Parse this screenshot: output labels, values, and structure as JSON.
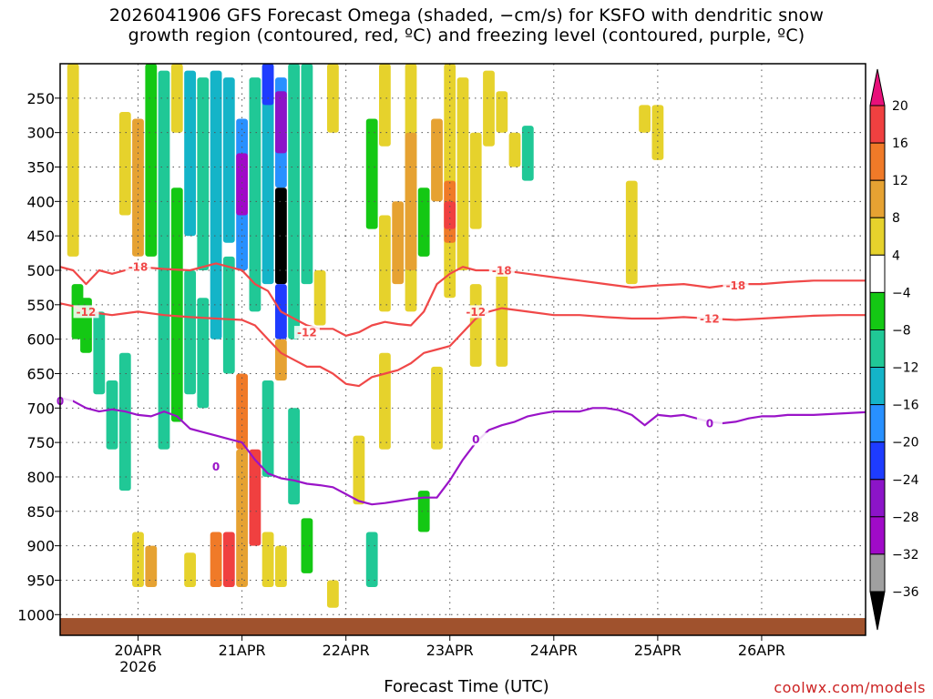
{
  "chart_data": {
    "type": "heatmap",
    "title_line1": "2026041906 GFS Forecast Omega (shaded, −cm/s) for KSFO with dendritic snow",
    "title_line2": "growth region (contoured, red, ºC) and freezing level (contoured, purple, ºC)",
    "xlabel": "Forecast Time (UTC)",
    "credit": "coolwx.com/models",
    "y_axis": {
      "variable": "pressure (hPa)",
      "range": [
        200,
        1030
      ],
      "ticks": [
        250,
        300,
        350,
        400,
        450,
        500,
        550,
        600,
        650,
        700,
        750,
        800,
        850,
        900,
        950,
        1000
      ]
    },
    "x_axis": {
      "variable": "hours since 2026-04-19 00Z",
      "range": [
        6,
        192
      ],
      "ticks": [
        {
          "hour": 24,
          "label": "20APR",
          "sublabel": "2026"
        },
        {
          "hour": 48,
          "label": "21APR",
          "sublabel": ""
        },
        {
          "hour": 72,
          "label": "22APR",
          "sublabel": ""
        },
        {
          "hour": 96,
          "label": "23APR",
          "sublabel": ""
        },
        {
          "hour": 120,
          "label": "24APR",
          "sublabel": ""
        },
        {
          "hour": 144,
          "label": "25APR",
          "sublabel": ""
        },
        {
          "hour": 168,
          "label": "26APR",
          "sublabel": ""
        }
      ]
    },
    "colorbar": {
      "labels": [
        "20",
        "16",
        "12",
        "8",
        "4",
        "−4",
        "−8",
        "−12",
        "−16",
        "−20",
        "−24",
        "−28",
        "−32",
        "−36"
      ],
      "colors": [
        "#e8107a",
        "#f04040",
        "#f07a28",
        "#e6a232",
        "#e6d22c",
        "#ffffff",
        "#14c814",
        "#20c896",
        "#14b4c8",
        "#2890ff",
        "#1e3cff",
        "#8c14c8",
        "#a00ac8",
        "#a0a0a0",
        "#000000"
      ]
    },
    "omega_cells": [
      {
        "t": 9,
        "p0": 200,
        "p1": 480,
        "v": 6
      },
      {
        "t": 10,
        "p0": 520,
        "p1": 600,
        "v": -6
      },
      {
        "t": 12,
        "p0": 540,
        "p1": 620,
        "v": -7
      },
      {
        "t": 15,
        "p0": 560,
        "p1": 680,
        "v": -8
      },
      {
        "t": 18,
        "p0": 660,
        "p1": 760,
        "v": -10
      },
      {
        "t": 21,
        "p0": 620,
        "p1": 820,
        "v": -9
      },
      {
        "t": 21,
        "p0": 270,
        "p1": 420,
        "v": 7
      },
      {
        "t": 24,
        "p0": 280,
        "p1": 480,
        "v": 9
      },
      {
        "t": 24,
        "p0": 880,
        "p1": 960,
        "v": 6
      },
      {
        "t": 27,
        "p0": 200,
        "p1": 480,
        "v": -6
      },
      {
        "t": 27,
        "p0": 900,
        "p1": 960,
        "v": 8
      },
      {
        "t": 30,
        "p0": 210,
        "p1": 760,
        "v": -9
      },
      {
        "t": 33,
        "p0": 200,
        "p1": 300,
        "v": 6
      },
      {
        "t": 33,
        "p0": 380,
        "p1": 720,
        "v": -7
      },
      {
        "t": 36,
        "p0": 210,
        "p1": 450,
        "v": -12
      },
      {
        "t": 36,
        "p0": 500,
        "p1": 680,
        "v": -10
      },
      {
        "t": 36,
        "p0": 910,
        "p1": 960,
        "v": 6
      },
      {
        "t": 39,
        "p0": 220,
        "p1": 500,
        "v": -8
      },
      {
        "t": 39,
        "p0": 540,
        "p1": 700,
        "v": -9
      },
      {
        "t": 42,
        "p0": 210,
        "p1": 600,
        "v": -14
      },
      {
        "t": 42,
        "p0": 880,
        "p1": 960,
        "v": 12
      },
      {
        "t": 45,
        "p0": 220,
        "p1": 460,
        "v": -13
      },
      {
        "t": 45,
        "p0": 480,
        "p1": 650,
        "v": -10
      },
      {
        "t": 45,
        "p0": 880,
        "p1": 960,
        "v": 17
      },
      {
        "t": 48,
        "p0": 280,
        "p1": 500,
        "v": -18
      },
      {
        "t": 48,
        "p0": 330,
        "p1": 420,
        "v": -29
      },
      {
        "t": 48,
        "p0": 650,
        "p1": 760,
        "v": 14
      },
      {
        "t": 48,
        "p0": 760,
        "p1": 960,
        "v": 9
      },
      {
        "t": 51,
        "p0": 220,
        "p1": 560,
        "v": -10
      },
      {
        "t": 51,
        "p0": 760,
        "p1": 900,
        "v": 18
      },
      {
        "t": 54,
        "p0": 200,
        "p1": 520,
        "v": -14
      },
      {
        "t": 54,
        "p0": 200,
        "p1": 260,
        "v": -21
      },
      {
        "t": 54,
        "p0": 660,
        "p1": 800,
        "v": -8
      },
      {
        "t": 54,
        "p0": 880,
        "p1": 960,
        "v": 7
      },
      {
        "t": 57,
        "p0": 220,
        "p1": 380,
        "v": -18
      },
      {
        "t": 57,
        "p0": 240,
        "p1": 330,
        "v": -25
      },
      {
        "t": 57,
        "p0": 380,
        "p1": 520,
        "v": -37
      },
      {
        "t": 57,
        "p0": 520,
        "p1": 600,
        "v": -21
      },
      {
        "t": 57,
        "p0": 600,
        "p1": 660,
        "v": 9
      },
      {
        "t": 57,
        "p0": 900,
        "p1": 960,
        "v": 6
      },
      {
        "t": 60,
        "p0": 200,
        "p1": 600,
        "v": -10
      },
      {
        "t": 60,
        "p0": 700,
        "p1": 840,
        "v": -9
      },
      {
        "t": 63,
        "p0": 200,
        "p1": 520,
        "v": -8
      },
      {
        "t": 63,
        "p0": 860,
        "p1": 940,
        "v": -7
      },
      {
        "t": 66,
        "p0": 500,
        "p1": 580,
        "v": 6
      },
      {
        "t": 69,
        "p0": 200,
        "p1": 300,
        "v": 6
      },
      {
        "t": 69,
        "p0": 950,
        "p1": 990,
        "v": 6
      },
      {
        "t": 75,
        "p0": 740,
        "p1": 840,
        "v": 6
      },
      {
        "t": 78,
        "p0": 280,
        "p1": 440,
        "v": -7
      },
      {
        "t": 78,
        "p0": 880,
        "p1": 960,
        "v": -8
      },
      {
        "t": 81,
        "p0": 200,
        "p1": 320,
        "v": 6
      },
      {
        "t": 81,
        "p0": 420,
        "p1": 560,
        "v": 7
      },
      {
        "t": 81,
        "p0": 620,
        "p1": 760,
        "v": 6
      },
      {
        "t": 84,
        "p0": 400,
        "p1": 520,
        "v": 10
      },
      {
        "t": 87,
        "p0": 200,
        "p1": 560,
        "v": 6
      },
      {
        "t": 87,
        "p0": 300,
        "p1": 500,
        "v": 9
      },
      {
        "t": 90,
        "p0": 380,
        "p1": 480,
        "v": -7
      },
      {
        "t": 90,
        "p0": 820,
        "p1": 880,
        "v": -7
      },
      {
        "t": 93,
        "p0": 280,
        "p1": 400,
        "v": 10
      },
      {
        "t": 93,
        "p0": 640,
        "p1": 760,
        "v": 6
      },
      {
        "t": 96,
        "p0": 200,
        "p1": 540,
        "v": 7
      },
      {
        "t": 96,
        "p0": 370,
        "p1": 460,
        "v": 13
      },
      {
        "t": 96,
        "p0": 400,
        "p1": 440,
        "v": 17
      },
      {
        "t": 99,
        "p0": 220,
        "p1": 500,
        "v": 6
      },
      {
        "t": 102,
        "p0": 300,
        "p1": 440,
        "v": 6
      },
      {
        "t": 102,
        "p0": 520,
        "p1": 640,
        "v": 6
      },
      {
        "t": 105,
        "p0": 210,
        "p1": 320,
        "v": 5
      },
      {
        "t": 108,
        "p0": 240,
        "p1": 300,
        "v": 6
      },
      {
        "t": 108,
        "p0": 500,
        "p1": 640,
        "v": 6
      },
      {
        "t": 111,
        "p0": 300,
        "p1": 350,
        "v": 5
      },
      {
        "t": 114,
        "p0": 290,
        "p1": 370,
        "v": -8
      },
      {
        "t": 138,
        "p0": 370,
        "p1": 520,
        "v": 6
      },
      {
        "t": 141,
        "p0": 260,
        "p1": 300,
        "v": 6
      },
      {
        "t": 144,
        "p0": 260,
        "p1": 340,
        "v": 6
      }
    ],
    "snow_growth_contours": [
      {
        "label": "-18",
        "points": [
          [
            6,
            495
          ],
          [
            9,
            500
          ],
          [
            12,
            520
          ],
          [
            15,
            500
          ],
          [
            18,
            505
          ],
          [
            24,
            495
          ],
          [
            30,
            498
          ],
          [
            36,
            500
          ],
          [
            42,
            490
          ],
          [
            48,
            500
          ],
          [
            51,
            520
          ],
          [
            54,
            530
          ],
          [
            57,
            560
          ],
          [
            60,
            570
          ],
          [
            63,
            580
          ],
          [
            66,
            585
          ],
          [
            69,
            585
          ],
          [
            72,
            595
          ],
          [
            75,
            590
          ],
          [
            78,
            580
          ],
          [
            81,
            575
          ],
          [
            84,
            578
          ],
          [
            87,
            580
          ],
          [
            90,
            560
          ],
          [
            93,
            520
          ],
          [
            96,
            505
          ],
          [
            99,
            495
          ],
          [
            102,
            500
          ],
          [
            108,
            500
          ],
          [
            114,
            505
          ],
          [
            120,
            510
          ],
          [
            126,
            515
          ],
          [
            132,
            520
          ],
          [
            138,
            525
          ],
          [
            144,
            522
          ],
          [
            150,
            520
          ],
          [
            156,
            525
          ],
          [
            162,
            520
          ],
          [
            168,
            520
          ],
          [
            174,
            517
          ],
          [
            180,
            515
          ],
          [
            186,
            515
          ],
          [
            192,
            515
          ]
        ],
        "label_at": [
          [
            24,
            495
          ],
          [
            108,
            500
          ],
          [
            162,
            522
          ]
        ]
      },
      {
        "label": "-12",
        "points": [
          [
            6,
            548
          ],
          [
            9,
            552
          ],
          [
            12,
            560
          ],
          [
            18,
            565
          ],
          [
            24,
            560
          ],
          [
            30,
            565
          ],
          [
            36,
            568
          ],
          [
            42,
            570
          ],
          [
            48,
            572
          ],
          [
            51,
            580
          ],
          [
            54,
            600
          ],
          [
            57,
            620
          ],
          [
            60,
            630
          ],
          [
            63,
            640
          ],
          [
            66,
            640
          ],
          [
            69,
            650
          ],
          [
            72,
            665
          ],
          [
            75,
            668
          ],
          [
            78,
            655
          ],
          [
            81,
            650
          ],
          [
            84,
            645
          ],
          [
            87,
            635
          ],
          [
            90,
            620
          ],
          [
            93,
            615
          ],
          [
            96,
            610
          ],
          [
            99,
            590
          ],
          [
            102,
            570
          ],
          [
            105,
            560
          ],
          [
            108,
            555
          ],
          [
            114,
            560
          ],
          [
            120,
            565
          ],
          [
            126,
            565
          ],
          [
            132,
            568
          ],
          [
            138,
            570
          ],
          [
            144,
            570
          ],
          [
            150,
            568
          ],
          [
            156,
            570
          ],
          [
            162,
            572
          ],
          [
            168,
            570
          ],
          [
            174,
            568
          ],
          [
            180,
            566
          ],
          [
            186,
            565
          ],
          [
            192,
            565
          ]
        ],
        "label_at": [
          [
            12,
            560
          ],
          [
            63,
            590
          ],
          [
            102,
            560
          ],
          [
            156,
            570
          ]
        ]
      }
    ],
    "freezing_level_contour": {
      "label": "0",
      "points": [
        [
          6,
          685
        ],
        [
          9,
          690
        ],
        [
          12,
          700
        ],
        [
          15,
          705
        ],
        [
          18,
          702
        ],
        [
          21,
          705
        ],
        [
          24,
          710
        ],
        [
          27,
          712
        ],
        [
          30,
          705
        ],
        [
          33,
          712
        ],
        [
          36,
          730
        ],
        [
          39,
          735
        ],
        [
          42,
          740
        ],
        [
          45,
          745
        ],
        [
          48,
          750
        ],
        [
          51,
          775
        ],
        [
          54,
          795
        ],
        [
          57,
          802
        ],
        [
          60,
          805
        ],
        [
          63,
          810
        ],
        [
          66,
          812
        ],
        [
          69,
          815
        ],
        [
          72,
          825
        ],
        [
          75,
          835
        ],
        [
          78,
          840
        ],
        [
          81,
          838
        ],
        [
          84,
          835
        ],
        [
          87,
          832
        ],
        [
          90,
          830
        ],
        [
          93,
          830
        ],
        [
          96,
          805
        ],
        [
          99,
          775
        ],
        [
          102,
          750
        ],
        [
          105,
          732
        ],
        [
          108,
          725
        ],
        [
          111,
          720
        ],
        [
          114,
          712
        ],
        [
          117,
          708
        ],
        [
          120,
          705
        ],
        [
          123,
          705
        ],
        [
          126,
          705
        ],
        [
          129,
          700
        ],
        [
          132,
          700
        ],
        [
          135,
          703
        ],
        [
          138,
          710
        ],
        [
          141,
          725
        ],
        [
          144,
          710
        ],
        [
          147,
          712
        ],
        [
          150,
          710
        ],
        [
          153,
          715
        ],
        [
          156,
          720
        ],
        [
          159,
          722
        ],
        [
          162,
          720
        ],
        [
          165,
          715
        ],
        [
          168,
          712
        ],
        [
          171,
          712
        ],
        [
          174,
          710
        ],
        [
          180,
          710
        ],
        [
          186,
          708
        ],
        [
          192,
          706
        ]
      ],
      "label_at": [
        [
          6,
          690
        ],
        [
          42,
          785
        ],
        [
          102,
          745
        ],
        [
          156,
          722
        ]
      ]
    },
    "surface_band": {
      "p_top": 1005
    }
  }
}
